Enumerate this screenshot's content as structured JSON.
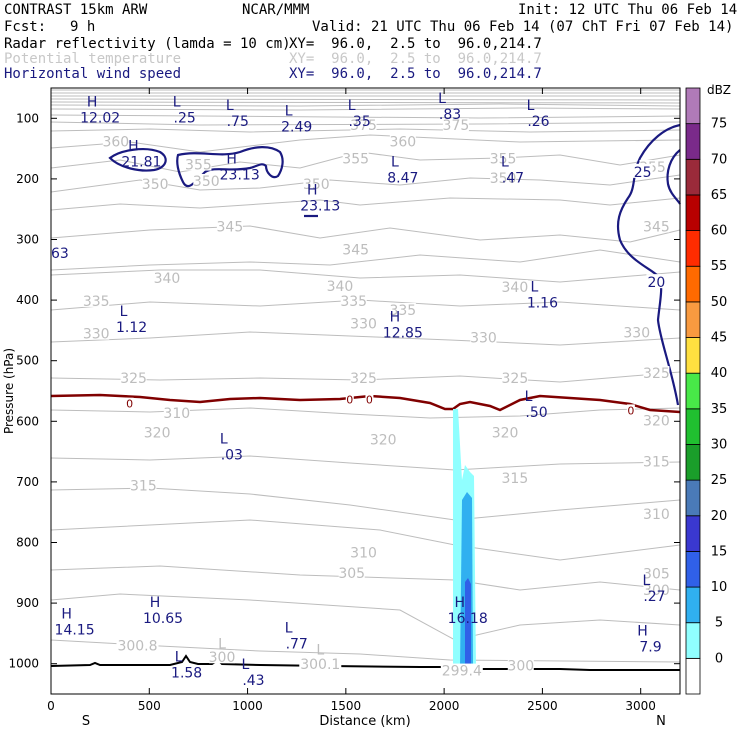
{
  "header": {
    "model": "CONTRAST 15km ARW",
    "org": "NCAR/MMM",
    "init": "Init: 12 UTC Thu 06 Feb 14",
    "fcst_label": "Fcst:",
    "fcst_value": "9 h",
    "valid": "Valid: 21 UTC Thu 06 Feb 14 (07 ChT Fri 07 Feb 14)",
    "fields": [
      {
        "name": "Radar reflectivity (lamda = 10 cm)",
        "xy": "XY=  96.0,  2.5 to  96.0,214.7",
        "color": "#000000"
      },
      {
        "name": "Potential temperature",
        "xy": "XY=  96.0,  2.5 to  96.0,214.7",
        "color": "#c8c8c8"
      },
      {
        "name": "Horizontal wind speed",
        "xy": "XY=  96.0,  2.5 to  96.0,214.7",
        "color": "#1a1a80"
      }
    ]
  },
  "chart_data": {
    "type": "cross-section",
    "xlabel": "Distance (km)",
    "ylabel": "Pressure (hPa)",
    "xlim": [
      0,
      3200
    ],
    "ylim": [
      1050,
      50
    ],
    "x_ticks": [
      "0",
      "500",
      "1000",
      "1500",
      "2000",
      "2500",
      "3000"
    ],
    "x_tick_values": [
      0,
      500,
      1000,
      1500,
      2000,
      2500,
      3000
    ],
    "y_ticks": [
      "100",
      "200",
      "300",
      "400",
      "500",
      "600",
      "700",
      "800",
      "900",
      "1000"
    ],
    "y_tick_values": [
      100,
      200,
      300,
      400,
      500,
      600,
      700,
      800,
      900,
      1000
    ],
    "endpoints": {
      "left": "S",
      "right": "N"
    },
    "colorbar": {
      "unit": "dBZ",
      "levels": [
        "0",
        "5",
        "10",
        "15",
        "20",
        "25",
        "30",
        "35",
        "40",
        "45",
        "50",
        "55",
        "60",
        "65",
        "70",
        "75"
      ],
      "colors": [
        "#ffffff",
        "#90ffff",
        "#30b0f0",
        "#3060e8",
        "#3a38d0",
        "#4a7ab8",
        "#1a9e2a",
        "#20c030",
        "#48e848",
        "#ffe040",
        "#f89a40",
        "#ff6a00",
        "#ff2c00",
        "#b80000",
        "#9a2a3a",
        "#7a2a8a",
        "#b07ab8"
      ]
    },
    "theta_labels": [
      {
        "text": "375",
        "d": 1590,
        "p": 113
      },
      {
        "text": "375",
        "d": 2060,
        "p": 113
      },
      {
        "text": "360",
        "d": 330,
        "p": 140
      },
      {
        "text": "360",
        "d": 1790,
        "p": 140
      },
      {
        "text": "355",
        "d": 1550,
        "p": 168
      },
      {
        "text": "355",
        "d": 2300,
        "p": 168
      },
      {
        "text": "355",
        "d": 750,
        "p": 178
      },
      {
        "text": "355",
        "d": 3060,
        "p": 182
      },
      {
        "text": "350",
        "d": 530,
        "p": 210
      },
      {
        "text": "350",
        "d": 790,
        "p": 205
      },
      {
        "text": "350",
        "d": 1350,
        "p": 210
      },
      {
        "text": "350",
        "d": 2300,
        "p": 200
      },
      {
        "text": "345",
        "d": 910,
        "p": 280
      },
      {
        "text": "345",
        "d": 1550,
        "p": 318
      },
      {
        "text": "345",
        "d": 3080,
        "p": 280
      },
      {
        "text": "340",
        "d": 590,
        "p": 365
      },
      {
        "text": "340",
        "d": 1470,
        "p": 378
      },
      {
        "text": "340",
        "d": 2360,
        "p": 380
      },
      {
        "text": "335",
        "d": 230,
        "p": 403
      },
      {
        "text": "335",
        "d": 1540,
        "p": 403
      },
      {
        "text": "335",
        "d": 1790,
        "p": 418
      },
      {
        "text": "330",
        "d": 230,
        "p": 457
      },
      {
        "text": "330",
        "d": 1590,
        "p": 440
      },
      {
        "text": "330",
        "d": 2200,
        "p": 463
      },
      {
        "text": "330",
        "d": 2980,
        "p": 455
      },
      {
        "text": "325",
        "d": 420,
        "p": 530
      },
      {
        "text": "325",
        "d": 1590,
        "p": 530
      },
      {
        "text": "325",
        "d": 2360,
        "p": 530
      },
      {
        "text": "325",
        "d": 3080,
        "p": 522
      },
      {
        "text": "320",
        "d": 540,
        "p": 620
      },
      {
        "text": "320",
        "d": 1690,
        "p": 632
      },
      {
        "text": "320",
        "d": 2310,
        "p": 620
      },
      {
        "text": "320",
        "d": 3080,
        "p": 600
      },
      {
        "text": "315",
        "d": 470,
        "p": 708
      },
      {
        "text": "315",
        "d": 2360,
        "p": 695
      },
      {
        "text": "315",
        "d": 3080,
        "p": 668
      },
      {
        "text": "310",
        "d": 640,
        "p": 588
      },
      {
        "text": "310",
        "d": 1590,
        "p": 818
      },
      {
        "text": "310",
        "d": 3080,
        "p": 755
      },
      {
        "text": "305",
        "d": 1530,
        "p": 852
      },
      {
        "text": "305",
        "d": 3080,
        "p": 853
      },
      {
        "text": "300",
        "d": 3080,
        "p": 880
      },
      {
        "text": "300.8",
        "d": 440,
        "p": 972
      },
      {
        "text": "300",
        "d": 870,
        "p": 991
      },
      {
        "text": "300.1",
        "d": 1370,
        "p": 1002
      },
      {
        "text": "299.4",
        "d": 2090,
        "p": 1013
      },
      {
        "text": "300",
        "d": 2390,
        "p": 1005
      }
    ],
    "wind_contour_labels": [
      {
        "text": "25",
        "d": 3010,
        "p": 190
      },
      {
        "text": "20",
        "d": 3080,
        "p": 372
      }
    ],
    "wind_extrema": [
      {
        "mark": "H",
        "value": "12.02",
        "d": 250,
        "p": 87
      },
      {
        "mark": "L",
        "value": ".25",
        "d": 680,
        "p": 87
      },
      {
        "mark": "L",
        "value": ".75",
        "d": 950,
        "p": 93
      },
      {
        "mark": "L",
        "value": "2.49",
        "d": 1250,
        "p": 102
      },
      {
        "mark": "L",
        "value": ".35",
        "d": 1570,
        "p": 93
      },
      {
        "mark": "L",
        "value": ".83",
        "d": 2030,
        "p": 81
      },
      {
        "mark": "L",
        "value": ".26",
        "d": 2480,
        "p": 93
      },
      {
        "mark": "H",
        "value": "21.81",
        "d": 460,
        "p": 160
      },
      {
        "mark": "H",
        "value": "23.13",
        "d": 960,
        "p": 181
      },
      {
        "mark": "H",
        "value": "23.13",
        "d": 1370,
        "p": 232
      },
      {
        "mark": "L",
        "value": "8.47",
        "d": 1790,
        "p": 186
      },
      {
        "mark": "L",
        "value": ".47",
        "d": 2350,
        "p": 186
      },
      {
        "mark": "L",
        "value": "1.16",
        "d": 2500,
        "p": 392
      },
      {
        "mark": "L",
        "value": "1.12",
        "d": 410,
        "p": 433
      },
      {
        "mark": "H",
        "value": "12.85",
        "d": 1790,
        "p": 442
      },
      {
        "mark": "L",
        "value": ".50",
        "d": 2470,
        "p": 573
      },
      {
        "mark": "L",
        "value": ".03",
        "d": 920,
        "p": 643
      },
      {
        "mark": "L",
        "value": ".27",
        "d": 3070,
        "p": 877
      },
      {
        "mark": "H",
        "value": "10.65",
        "d": 570,
        "p": 913
      },
      {
        "mark": "H",
        "value": "14.15",
        "d": 120,
        "p": 932
      },
      {
        "mark": "H",
        "value": "16.18",
        "d": 2120,
        "p": 913
      },
      {
        "mark": "L",
        "value": ".77",
        "d": 1250,
        "p": 955
      },
      {
        "mark": "H",
        "value": "7.9",
        "d": 3050,
        "p": 960
      },
      {
        "mark": "L",
        "value": "1.58",
        "d": 690,
        "p": 1003
      },
      {
        "mark": "L",
        "value": ".43",
        "d": 1030,
        "p": 1015
      }
    ],
    "theta_gray_extrema": [
      {
        "mark": "L",
        "value": "300",
        "d": 870,
        "p": 985
      },
      {
        "mark": "L",
        "value": "300.1",
        "d": 1370,
        "p": 995
      }
    ],
    "freezing_level_label": "0",
    "freezing_level_labels": [
      {
        "d": 400,
        "p": 571
      },
      {
        "d": 1520,
        "p": 564
      },
      {
        "d": 1620,
        "p": 564
      },
      {
        "d": 2950,
        "p": 582
      }
    ],
    "cut_off_label": {
      "text": "63",
      "d": 40,
      "p": 320
    }
  }
}
